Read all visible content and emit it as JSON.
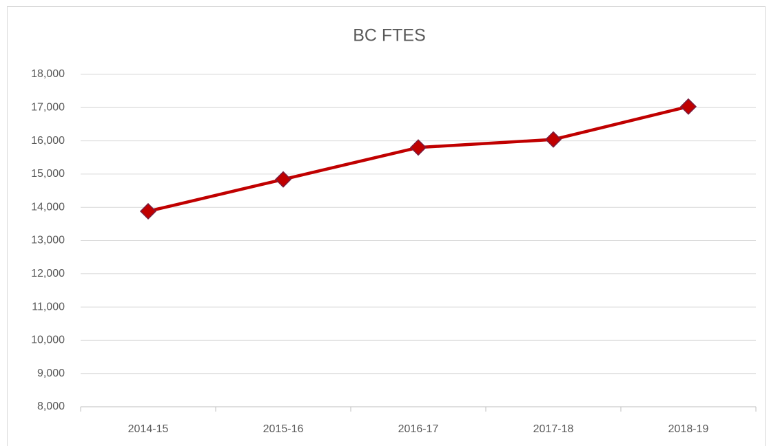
{
  "chart_data": {
    "type": "line",
    "title": "BC FTES",
    "categories": [
      "2014-15",
      "2015-16",
      "2016-17",
      "2017-18",
      "2018-19"
    ],
    "series": [
      {
        "name": "BC FTES",
        "color": "#c00000",
        "values": [
          13880,
          14840,
          15800,
          16040,
          17030
        ]
      }
    ],
    "ylim": [
      8000,
      18000
    ],
    "yticks": [
      {
        "value": 8000,
        "label": "8,000"
      },
      {
        "value": 9000,
        "label": "9,000"
      },
      {
        "value": 10000,
        "label": "10,000"
      },
      {
        "value": 11000,
        "label": "11,000"
      },
      {
        "value": 12000,
        "label": "12,000"
      },
      {
        "value": 13000,
        "label": "13,000"
      },
      {
        "value": 14000,
        "label": "14,000"
      },
      {
        "value": 15000,
        "label": "15,000"
      },
      {
        "value": 16000,
        "label": "16,000"
      },
      {
        "value": 17000,
        "label": "17,000"
      },
      {
        "value": 18000,
        "label": "18,000"
      }
    ],
    "grid": true
  }
}
